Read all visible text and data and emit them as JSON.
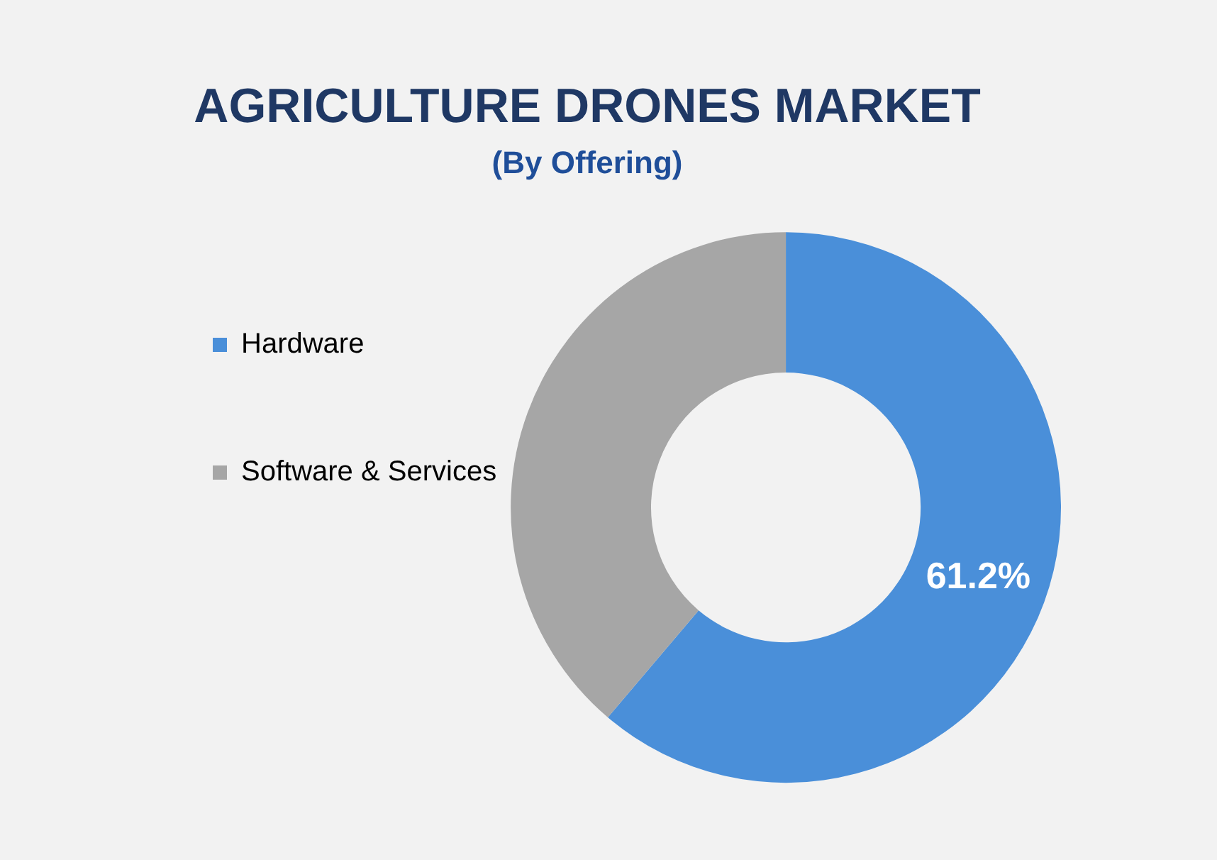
{
  "chart_data": {
    "type": "donut",
    "title": "AGRICULTURE DRONES MARKET",
    "subtitle": "(By Offering)",
    "categories": [
      "Hardware",
      "Software & Services"
    ],
    "values": [
      61.2,
      38.8
    ],
    "colors": [
      "#4a8fd9",
      "#a6a6a6"
    ],
    "value_labels": [
      "61.2%",
      null
    ],
    "legend": "left"
  }
}
